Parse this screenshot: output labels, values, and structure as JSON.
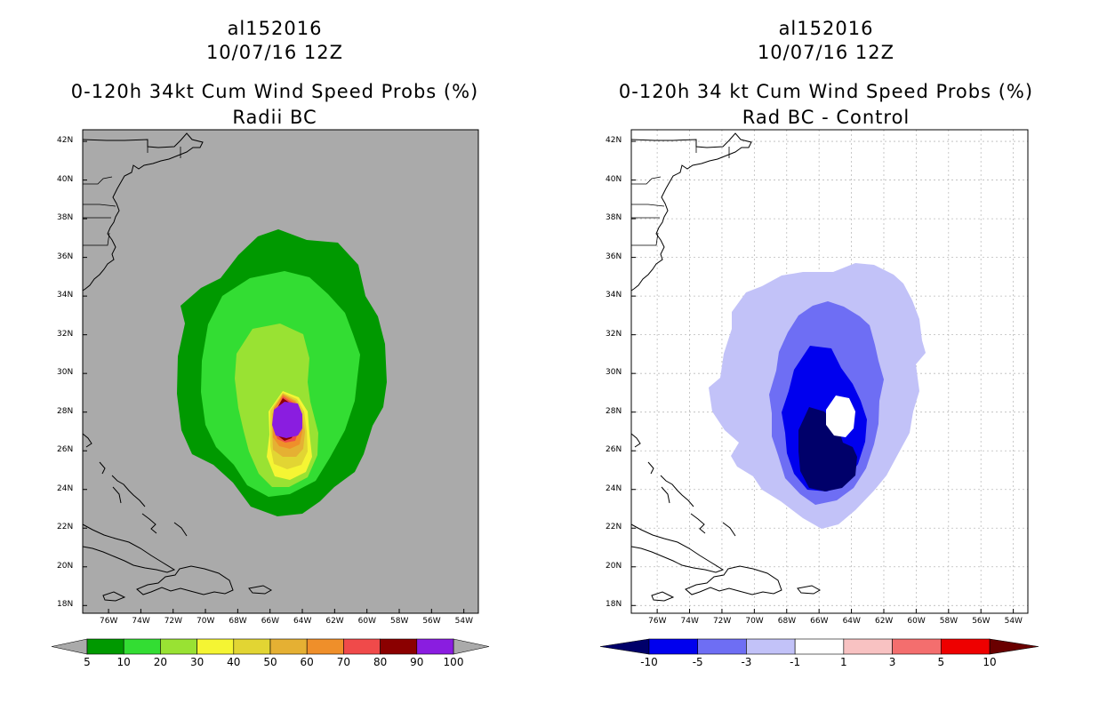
{
  "left": {
    "title_lines": [
      "al152016",
      "10/07/16 12Z",
      "0-120h 34kt Cum Wind Speed Probs (%)",
      "Radii BC"
    ],
    "lat_labels": [
      "42N",
      "40N",
      "38N",
      "36N",
      "34N",
      "32N",
      "30N",
      "28N",
      "26N",
      "24N",
      "22N",
      "20N",
      "18N"
    ],
    "lon_labels": [
      "76W",
      "74W",
      "72W",
      "70W",
      "68W",
      "66W",
      "64W",
      "62W",
      "60W",
      "58W",
      "56W",
      "54W"
    ],
    "colorbar": {
      "labels": [
        "5",
        "10",
        "20",
        "30",
        "40",
        "50",
        "60",
        "70",
        "80",
        "90",
        "100"
      ],
      "colors": [
        "#009900",
        "#33dd33",
        "#99e233",
        "#f5f533",
        "#e2d533",
        "#e5b033",
        "#ef8f2a",
        "#f04a4a",
        "#8b0000",
        "#8a1de0"
      ]
    }
  },
  "right": {
    "title_lines": [
      "al152016",
      "10/07/16 12Z",
      "0-120h 34 kt Cum Wind Speed Probs (%)",
      "Rad BC - Control"
    ],
    "lat_labels": [
      "42N",
      "40N",
      "38N",
      "36N",
      "34N",
      "32N",
      "30N",
      "28N",
      "26N",
      "24N",
      "22N",
      "20N",
      "18N"
    ],
    "lon_labels": [
      "76W",
      "74W",
      "72W",
      "70W",
      "68W",
      "66W",
      "64W",
      "62W",
      "60W",
      "58W",
      "56W",
      "54W"
    ],
    "colorbar": {
      "labels": [
        "-10",
        "-5",
        "-3",
        "-1",
        "1",
        "3",
        "5",
        "10"
      ],
      "colors": [
        "#00006a",
        "#0000ee",
        "#6e6ef4",
        "#c2c2f8",
        "#ffffff",
        "#f8c2c2",
        "#f46e6e",
        "#ee0000",
        "#6a0000"
      ]
    }
  },
  "colors": {
    "ocean_left": "#aaaaaa",
    "land_left": "#aaaaaa",
    "grid": "#bbbbbb"
  }
}
